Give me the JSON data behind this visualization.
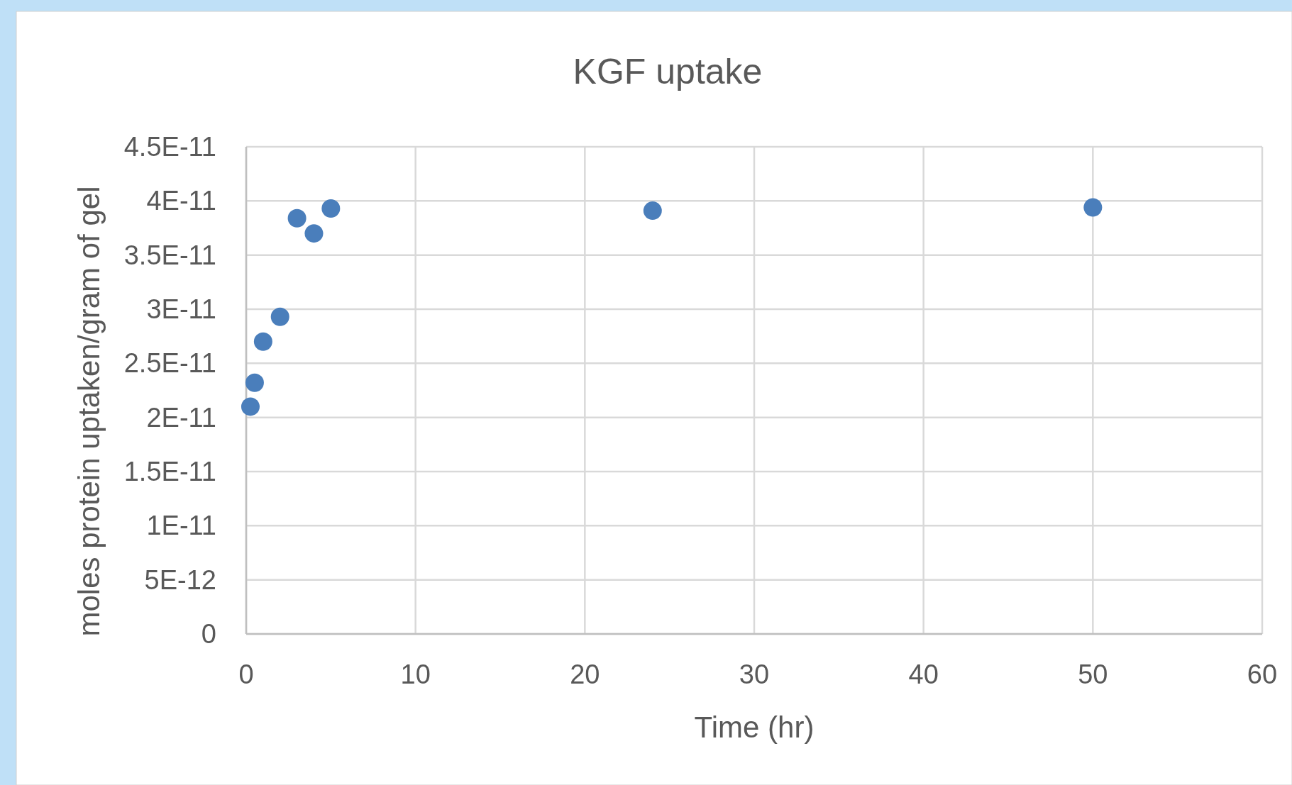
{
  "chart_data": {
    "type": "scatter",
    "title": "KGF uptake",
    "xlabel": "Time (hr)",
    "ylabel": "moles protein uptaken/gram of gel",
    "x": [
      0.25,
      0.5,
      1,
      2,
      3,
      4,
      5,
      24,
      50
    ],
    "values": [
      2.1e-11,
      2.32e-11,
      2.7e-11,
      2.93e-11,
      3.84e-11,
      3.7e-11,
      3.93e-11,
      3.91e-11,
      3.94e-11
    ],
    "color": "#4a7ebb",
    "marker": "circle",
    "grid": true,
    "xlim": [
      0,
      60
    ],
    "xticks": [
      0,
      10,
      20,
      30,
      40,
      50,
      60
    ],
    "ylim": [
      0,
      4.5e-11
    ],
    "yticks": [
      0,
      {
        "value": 5e-12,
        "label": "5E-12"
      },
      {
        "value": 1e-11,
        "label": "1E-11"
      },
      {
        "value": 1.5e-11,
        "label": "1.5E-11"
      },
      {
        "value": 2e-11,
        "label": "2E-11"
      },
      {
        "value": 2.5e-11,
        "label": "2.5E-11"
      },
      {
        "value": 3e-11,
        "label": "3E-11"
      },
      {
        "value": 3.5e-11,
        "label": "3.5E-11"
      },
      {
        "value": 4e-11,
        "label": "4E-11"
      },
      {
        "value": 4.5e-11,
        "label": "4.5E-11"
      }
    ]
  }
}
